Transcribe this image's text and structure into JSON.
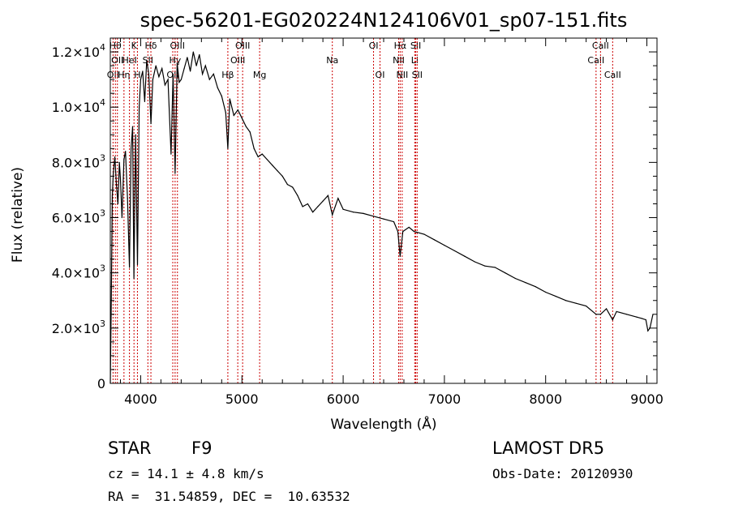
{
  "chart_data": {
    "type": "line",
    "title": "spec-56201-EG020224N124106V01_sp07-151.fits",
    "xlabel": "Wavelength (Å)",
    "ylabel": "Flux (relative)",
    "xlim": [
      3700,
      9100
    ],
    "ylim": [
      0,
      12500
    ],
    "x_ticks": [
      4000,
      5000,
      6000,
      7000,
      8000,
      9000
    ],
    "x_tick_labels": [
      "4000",
      "5000",
      "6000",
      "7000",
      "8000",
      "9000"
    ],
    "y_ticks": [
      {
        "value": 0,
        "label": "0",
        "mant": "0",
        "exp": ""
      },
      {
        "value": 2000,
        "label": "2.0×10³",
        "mant": "2.0×10",
        "exp": "3"
      },
      {
        "value": 4000,
        "label": "4.0×10³",
        "mant": "4.0×10",
        "exp": "3"
      },
      {
        "value": 6000,
        "label": "6.0×10³",
        "mant": "6.0×10",
        "exp": "3"
      },
      {
        "value": 8000,
        "label": "8.0×10³",
        "mant": "8.0×10",
        "exp": "3"
      },
      {
        "value": 10000,
        "label": "1.0×10⁴",
        "mant": "1.0×10",
        "exp": "4"
      },
      {
        "value": 12000,
        "label": "1.2×10⁴",
        "mant": "1.2×10",
        "exp": "4"
      }
    ],
    "series": [
      {
        "color": "#000000",
        "x": [
          3700,
          3710,
          3720,
          3730,
          3745,
          3760,
          3775,
          3790,
          3800,
          3815,
          3835,
          3850,
          3870,
          3889,
          3905,
          3920,
          3933,
          3950,
          3968,
          3985,
          4000,
          4020,
          4040,
          4060,
          4080,
          4101,
          4120,
          4150,
          4180,
          4210,
          4240,
          4270,
          4300,
          4320,
          4340,
          4360,
          4380,
          4400,
          4430,
          4460,
          4490,
          4520,
          4550,
          4580,
          4610,
          4640,
          4680,
          4720,
          4760,
          4800,
          4840,
          4861,
          4880,
          4920,
          4960,
          5000,
          5040,
          5080,
          5120,
          5160,
          5200,
          5250,
          5300,
          5350,
          5400,
          5450,
          5500,
          5550,
          5600,
          5650,
          5700,
          5750,
          5800,
          5850,
          5893,
          5950,
          6000,
          6100,
          6200,
          6300,
          6400,
          6500,
          6540,
          6563,
          6590,
          6650,
          6700,
          6800,
          6900,
          7000,
          7100,
          7200,
          7300,
          7400,
          7500,
          7600,
          7700,
          7800,
          7900,
          8000,
          8100,
          8200,
          8300,
          8400,
          8498,
          8542,
          8600,
          8662,
          8700,
          8800,
          8900,
          8950,
          8990,
          9010,
          9030,
          9060
        ],
        "values": [
          0,
          3000,
          6800,
          7600,
          8200,
          7200,
          6500,
          8000,
          7400,
          6000,
          8100,
          8400,
          6700,
          4200,
          8500,
          9300,
          3800,
          9000,
          4300,
          10000,
          11000,
          11300,
          10200,
          11700,
          11200,
          9400,
          11000,
          11500,
          11100,
          11400,
          10800,
          11000,
          8300,
          11200,
          7600,
          11600,
          10900,
          11000,
          11400,
          11800,
          11300,
          12000,
          11500,
          11900,
          11200,
          11500,
          11000,
          11200,
          10700,
          10400,
          9800,
          8500,
          10300,
          9700,
          9900,
          9600,
          9300,
          9100,
          8500,
          8200,
          8300,
          8100,
          7900,
          7700,
          7500,
          7200,
          7100,
          6800,
          6400,
          6500,
          6200,
          6400,
          6600,
          6800,
          6100,
          6700,
          6300,
          6200,
          6150,
          6050,
          5950,
          5850,
          5500,
          4600,
          5500,
          5650,
          5500,
          5400,
          5200,
          5000,
          4800,
          4600,
          4400,
          4250,
          4200,
          4000,
          3800,
          3650,
          3500,
          3300,
          3150,
          3000,
          2900,
          2800,
          2500,
          2500,
          2700,
          2300,
          2600,
          2500,
          2400,
          2350,
          2300,
          1900,
          2000,
          2500
        ]
      }
    ],
    "lines": [
      {
        "x": 3727,
        "label": "OII",
        "row": 2
      },
      {
        "x": 3750,
        "label": "Hθ",
        "row": 0
      },
      {
        "x": 3770,
        "label": "OII",
        "row": 1
      },
      {
        "x": 3835,
        "label": "Hη",
        "row": 2
      },
      {
        "x": 3889,
        "label": "HeI",
        "row": 1
      },
      {
        "x": 3934,
        "label": "K",
        "row": 0
      },
      {
        "x": 3968,
        "label": "H",
        "row": 2
      },
      {
        "x": 4071,
        "label": "SII",
        "row": 1
      },
      {
        "x": 4101,
        "label": "Hδ",
        "row": 0
      },
      {
        "x": 4317,
        "label": "OII",
        "row": 2
      },
      {
        "x": 4340,
        "label": "Hγ",
        "row": 1
      },
      {
        "x": 4363,
        "label": "OIII",
        "row": 0
      },
      {
        "x": 4861,
        "label": "Hβ",
        "row": 2
      },
      {
        "x": 4959,
        "label": "OIII",
        "row": 1
      },
      {
        "x": 5007,
        "label": "OIII",
        "row": 0
      },
      {
        "x": 5175,
        "label": "Mg",
        "row": 2
      },
      {
        "x": 5893,
        "label": "Na",
        "row": 1
      },
      {
        "x": 6300,
        "label": "OI",
        "row": 0
      },
      {
        "x": 6364,
        "label": "OI",
        "row": 2
      },
      {
        "x": 6548,
        "label": "NII",
        "row": 1
      },
      {
        "x": 6563,
        "label": "Hα",
        "row": 0
      },
      {
        "x": 6583,
        "label": "NII",
        "row": 2
      },
      {
        "x": 6707,
        "label": "Li",
        "row": 1
      },
      {
        "x": 6717,
        "label": "SII",
        "row": 0
      },
      {
        "x": 6731,
        "label": "SII",
        "row": 2
      },
      {
        "x": 8498,
        "label": "CaII",
        "row": 1
      },
      {
        "x": 8542,
        "label": "CaII",
        "row": 0
      },
      {
        "x": 8662,
        "label": "CaII",
        "row": 2
      }
    ],
    "line_color": "#cc0000"
  },
  "info": {
    "class_label": "STAR",
    "subclass": "F9",
    "survey": "LAMOST DR5",
    "cz": "cz = 14.1 ± 4.8 km/s",
    "obs_date": "Obs-Date: 20120930",
    "coords": "RA =  31.54859, DEC =  10.63532"
  }
}
